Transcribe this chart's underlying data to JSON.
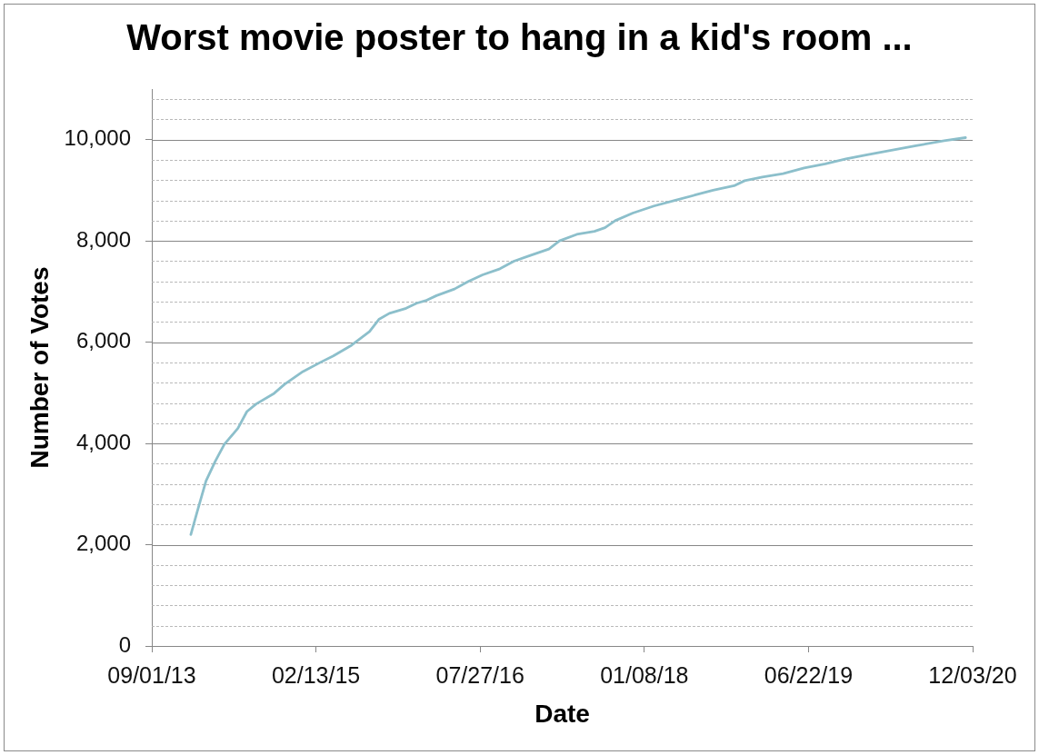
{
  "chart_data": {
    "type": "line",
    "title": "Worst movie poster to hang in a kid's room ...",
    "xlabel": "Date",
    "ylabel": "Number of Votes",
    "x": [
      "2014-01-05",
      "2014-01-25",
      "2014-02-23",
      "2014-03-25",
      "2014-04-23",
      "2014-06-06",
      "2014-07-05",
      "2014-08-04",
      "2014-10-01",
      "2014-11-04",
      "2015-01-02",
      "2015-03-02",
      "2015-04-10",
      "2015-06-08",
      "2015-08-05",
      "2015-09-04",
      "2015-10-08",
      "2015-12-01",
      "2016-01-04",
      "2016-02-02",
      "2016-03-08",
      "2016-05-05",
      "2016-06-19",
      "2016-08-04",
      "2016-09-29",
      "2016-11-13",
      "2017-01-03",
      "2017-03-06",
      "2017-04-09",
      "2017-06-04",
      "2017-07-31",
      "2017-09-03",
      "2017-10-06",
      "2017-12-02",
      "2018-02-08",
      "2018-04-16",
      "2018-06-23",
      "2018-08-18",
      "2018-10-25",
      "2018-11-28",
      "2019-01-24",
      "2019-04-01",
      "2019-06-08",
      "2019-08-15",
      "2019-10-21",
      "2019-12-28",
      "2020-03-16",
      "2020-06-03",
      "2020-09-02",
      "2020-11-10"
    ],
    "series": [
      {
        "color": "#8cbfcb",
        "values": [
          2200,
          2640,
          3260,
          3650,
          3980,
          4300,
          4630,
          4780,
          4990,
          5170,
          5420,
          5610,
          5730,
          5940,
          6210,
          6450,
          6570,
          6670,
          6770,
          6820,
          6920,
          7050,
          7200,
          7330,
          7450,
          7600,
          7710,
          7840,
          8000,
          8130,
          8190,
          8260,
          8400,
          8550,
          8690,
          8800,
          8910,
          9000,
          9090,
          9190,
          9260,
          9330,
          9440,
          9520,
          9620,
          9700,
          9790,
          9880,
          9980,
          10040
        ]
      }
    ],
    "xlim": [
      "2013-09-01",
      "2020-12-03"
    ],
    "xticks": [
      {
        "value": "2013-09-01",
        "label": "09/01/13"
      },
      {
        "value": "2015-02-13",
        "label": "02/13/15"
      },
      {
        "value": "2016-07-27",
        "label": "07/27/16"
      },
      {
        "value": "2018-01-08",
        "label": "01/08/18"
      },
      {
        "value": "2019-06-22",
        "label": "06/22/19"
      },
      {
        "value": "2020-12-03",
        "label": "12/03/20"
      }
    ],
    "ylim": [
      0,
      11000
    ],
    "yticks": [
      0,
      {
        "value": 400,
        "label": null
      },
      {
        "value": 800,
        "label": null
      },
      {
        "value": 1200,
        "label": null
      },
      {
        "value": 1600,
        "label": null
      },
      {
        "value": 2000,
        "label": "2,000"
      },
      {
        "value": 2400,
        "label": null
      },
      {
        "value": 2800,
        "label": null
      },
      {
        "value": 3200,
        "label": null
      },
      {
        "value": 3600,
        "label": null
      },
      {
        "value": 4000,
        "label": "4,000"
      },
      {
        "value": 4400,
        "label": null
      },
      {
        "value": 4800,
        "label": null
      },
      {
        "value": 5200,
        "label": null
      },
      {
        "value": 5600,
        "label": null
      },
      {
        "value": 6000,
        "label": "6,000"
      },
      {
        "value": 6400,
        "label": null
      },
      {
        "value": 6800,
        "label": null
      },
      {
        "value": 7200,
        "label": null
      },
      {
        "value": 7600,
        "label": null
      },
      {
        "value": 8000,
        "label": "8,000"
      },
      {
        "value": 8400,
        "label": null
      },
      {
        "value": 8800,
        "label": null
      },
      {
        "value": 9200,
        "label": null
      },
      {
        "value": 9600,
        "label": null
      },
      {
        "value": 10000,
        "label": "10,000"
      },
      {
        "value": 10400,
        "label": null
      },
      {
        "value": 10800,
        "label": null
      }
    ],
    "grid": "y",
    "marker": "none",
    "line_style": "solid"
  }
}
